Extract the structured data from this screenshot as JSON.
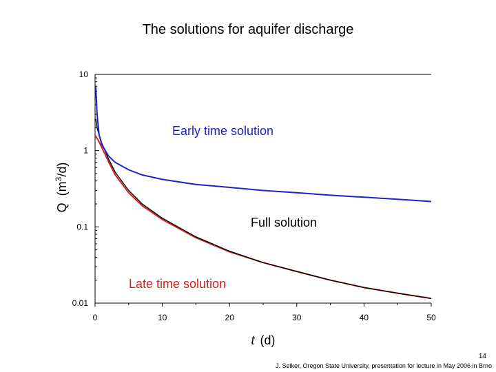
{
  "slide": {
    "title": "The solutions for aquifer discharge",
    "page_number": "14",
    "credit": "J. Selker, Oregon State University, presentation for lecture in May 2006 in Brno"
  },
  "colors": {
    "early": "#2020c8",
    "full": "#000000",
    "late": "#d02020"
  },
  "chart_data": {
    "type": "line",
    "title": "The solutions for aquifer discharge",
    "xlabel_symbol": "t",
    "xlabel_unit": "(d)",
    "ylabel_main": "Q",
    "ylabel_unit_base": "(m",
    "ylabel_unit_sup": "3",
    "ylabel_unit_tail": "/d)",
    "xlim": [
      0,
      50
    ],
    "ylim": [
      0.01,
      10
    ],
    "yscale": "log",
    "x_ticks": [
      "0",
      "10",
      "20",
      "30",
      "40",
      "50"
    ],
    "y_ticks": [
      "10",
      "1",
      "0.1",
      "0.01"
    ],
    "grid": false,
    "annotations": {
      "early": "Early time solution",
      "full": "Full solution",
      "late": "Late time solution"
    },
    "series": [
      {
        "name": "Early time solution",
        "x": [
          0.1,
          0.3,
          0.6,
          1,
          2,
          3,
          5,
          7,
          10,
          15,
          20,
          25,
          30,
          35,
          40,
          45,
          50
        ],
        "y": [
          7.0,
          3.0,
          1.6,
          1.2,
          0.85,
          0.7,
          0.56,
          0.48,
          0.42,
          0.36,
          0.33,
          0.3,
          0.28,
          0.26,
          0.245,
          0.23,
          0.215
        ]
      },
      {
        "name": "Full solution",
        "x": [
          0.1,
          0.3,
          0.6,
          1,
          2,
          3,
          5,
          7,
          10,
          15,
          20,
          25,
          30,
          35,
          40,
          45,
          50
        ],
        "y": [
          2.6,
          2.0,
          1.6,
          1.25,
          0.78,
          0.52,
          0.3,
          0.2,
          0.13,
          0.074,
          0.048,
          0.034,
          0.026,
          0.02,
          0.016,
          0.0135,
          0.0115
        ]
      },
      {
        "name": "Late time solution",
        "x": [
          0,
          0.5,
          1,
          2,
          3,
          5,
          7,
          10,
          15,
          20,
          25,
          30,
          35,
          40,
          45,
          50
        ],
        "y": [
          1.6,
          1.35,
          1.1,
          0.72,
          0.48,
          0.28,
          0.19,
          0.125,
          0.072,
          0.047,
          0.034,
          0.026,
          0.02,
          0.016,
          0.0135,
          0.0115
        ]
      }
    ]
  }
}
